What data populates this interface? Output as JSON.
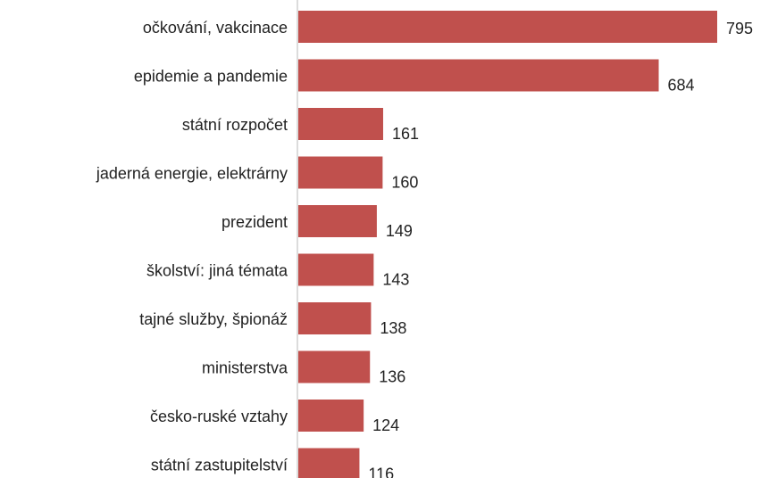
{
  "chart_data": {
    "type": "bar",
    "orientation": "horizontal",
    "categories": [
      "očkování, vakcinace",
      "epidemie a pandemie",
      "státní rozpočet",
      "jaderná energie, elektrárny",
      "prezident",
      "školství: jiná témata",
      "tajné služby, špionáž",
      "ministerstva",
      "česko-ruské vztahy",
      "státní zastupitelství"
    ],
    "values": [
      795,
      684,
      161,
      160,
      149,
      143,
      138,
      136,
      124,
      116
    ],
    "color": "#c0504d"
  }
}
